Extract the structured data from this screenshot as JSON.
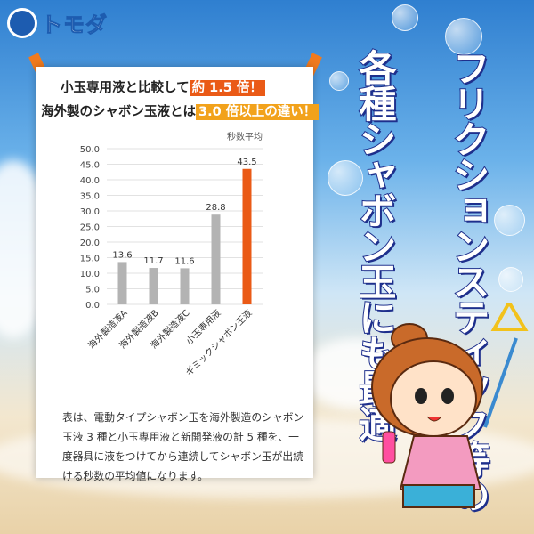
{
  "brand": {
    "name": "トモダ"
  },
  "headline": {
    "line1_prefix": "小玉専用液と比較して",
    "line1_highlight": "約 1.5 倍！",
    "line2_prefix": "海外製のシャボン玉液とは",
    "line2_highlight": "3.0 倍以上の違い！"
  },
  "side_copy": {
    "column1": "フリクションスティック等の",
    "column2": "各種シャボン玉にも最適"
  },
  "note": "表は、電動タイプシャボン玉を海外製造のシャボン玉液 3 種と小玉専用液と新開発液の計 5 種を、一度器具に液をつけてから連続してシャボン玉が出続ける秒数の平均値になります。",
  "colors": {
    "bar_default": "#b3b3b3",
    "bar_highlight": "#ea5a16",
    "accent_orange": "#f07a1e",
    "text_outline": "#1e2f8c"
  },
  "chart_data": {
    "type": "bar",
    "title": "",
    "legend_label": "秒数平均",
    "categories": [
      "海外製造液A",
      "海外製造液B",
      "海外製造液C",
      "小玉専用液",
      "ギミックシャボン玉液"
    ],
    "values": [
      13.6,
      11.7,
      11.6,
      28.8,
      43.5
    ],
    "data_labels": [
      "13.6",
      "11.7",
      "11.6",
      "28.8",
      "43.5"
    ],
    "highlight_index": 4,
    "ylim": [
      0,
      50
    ],
    "yticks": [
      "0.0",
      "5.0",
      "10.0",
      "15.0",
      "20.0",
      "25.0",
      "30.0",
      "35.0",
      "40.0",
      "45.0",
      "50.0"
    ],
    "grid": true
  }
}
